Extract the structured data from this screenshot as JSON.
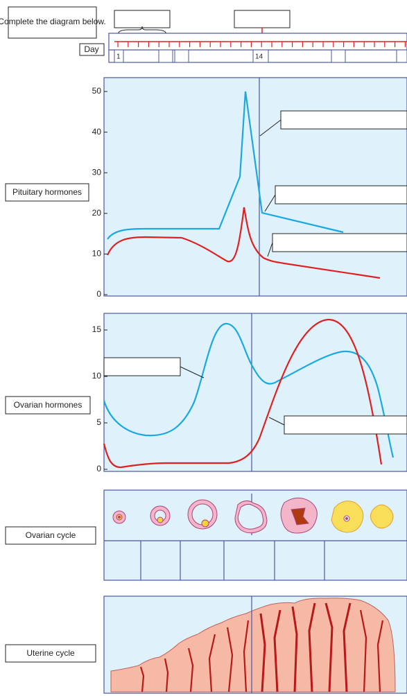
{
  "header": {
    "instruction": "Complete the diagram below."
  },
  "day_bar": {
    "label": "Day",
    "day_first": "1",
    "day_mid": "14"
  },
  "panels": [
    {
      "label": "Pituitary hormones",
      "yticks": [
        0,
        10,
        20,
        30,
        40,
        50
      ]
    },
    {
      "label": "Ovarian hormones",
      "yticks": [
        0,
        5,
        10,
        15
      ]
    },
    {
      "label": "Ovarian cycle"
    },
    {
      "label": "Uterine cycle"
    }
  ]
}
